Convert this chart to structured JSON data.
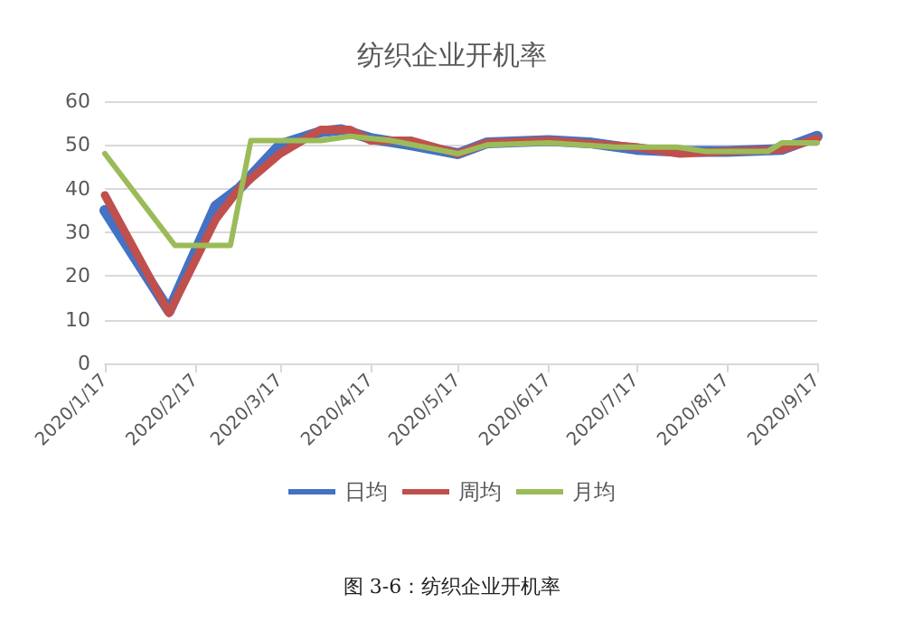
{
  "chart_data": {
    "type": "line",
    "title": "纺织企业开机率",
    "annotations": [
      "图 3-6：纺织企业开机率"
    ],
    "xlim": [
      "2020-01-17",
      "2020-09-17"
    ],
    "xticks": [
      {
        "value": "2020-01-17",
        "label": "2020/1/17"
      },
      {
        "value": "2020-02-17",
        "label": "2020/2/17"
      },
      {
        "value": "2020-03-17",
        "label": "2020/3/17"
      },
      {
        "value": "2020-04-17",
        "label": "2020/4/17"
      },
      {
        "value": "2020-05-17",
        "label": "2020/5/17"
      },
      {
        "value": "2020-06-17",
        "label": "2020/6/17"
      },
      {
        "value": "2020-07-17",
        "label": "2020/7/17"
      },
      {
        "value": "2020-08-17",
        "label": "2020/8/17"
      },
      {
        "value": "2020-09-17",
        "label": "2020/9/17"
      }
    ],
    "ylim": [
      0,
      60
    ],
    "yticks": [
      0,
      10,
      20,
      30,
      40,
      50,
      60
    ],
    "grid": "y",
    "legend": "bottom",
    "marker": "none",
    "line_style": "solid",
    "series": [
      {
        "name": "日均",
        "color": "#4472c4",
        "x": [
          "2020-01-17",
          "2020-02-08",
          "2020-02-24",
          "2020-03-03",
          "2020-03-17",
          "2020-03-31",
          "2020-04-07",
          "2020-04-17",
          "2020-05-01",
          "2020-05-17",
          "2020-05-27",
          "2020-06-17",
          "2020-07-01",
          "2020-07-17",
          "2020-08-01",
          "2020-08-17",
          "2020-09-05",
          "2020-09-17"
        ],
        "values": [
          35,
          12,
          36,
          40,
          50,
          53,
          53.5,
          51.5,
          50,
          48,
          50.5,
          51,
          50.5,
          49,
          48.5,
          48.5,
          49,
          52
        ]
      },
      {
        "name": "周均",
        "color": "#c0504d",
        "x": [
          "2020-01-17",
          "2020-02-08",
          "2020-02-24",
          "2020-03-03",
          "2020-03-17",
          "2020-03-31",
          "2020-04-10",
          "2020-04-17",
          "2020-05-01",
          "2020-05-17",
          "2020-05-27",
          "2020-06-17",
          "2020-07-17",
          "2020-08-01",
          "2020-08-17",
          "2020-09-05",
          "2020-09-17"
        ],
        "values": [
          38.5,
          11.5,
          33,
          40,
          48,
          53.5,
          53.5,
          51,
          51,
          48,
          50.5,
          51,
          49.5,
          48,
          48.5,
          49,
          51.5
        ]
      },
      {
        "name": "月均",
        "color": "#9bbb59",
        "x": [
          "2020-01-17",
          "2020-02-10",
          "2020-02-29",
          "2020-03-07",
          "2020-03-31",
          "2020-04-10",
          "2020-04-24",
          "2020-05-17",
          "2020-05-27",
          "2020-06-17",
          "2020-07-10",
          "2020-07-31",
          "2020-08-10",
          "2020-08-31",
          "2020-09-05",
          "2020-09-17"
        ],
        "values": [
          48,
          27,
          27,
          51,
          51,
          52,
          51,
          48,
          50,
          50.5,
          49.5,
          49.5,
          48.5,
          48.5,
          50.5,
          50.5
        ]
      }
    ]
  }
}
